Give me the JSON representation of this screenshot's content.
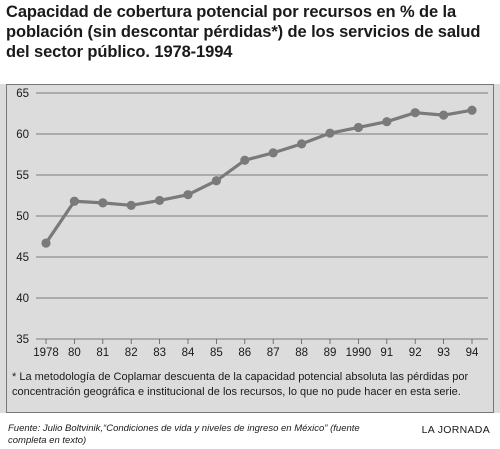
{
  "title": "Capacidad de cobertura potencial por recursos en % de la población (sin descontar pérdidas*) de los servicios de salud del sector público. 1978-1994",
  "note": "* La metodología de Coplamar descuenta de la capacidad potencial absoluta las pérdidas por concentración geográfica e institucional de los recursos, lo que no pude hacer en esta serie.",
  "source": "Fuente: Julio Boltvinik,“Condiciones de vida y niveles de ingreso en México” (fuente completa en texto)",
  "credit": "LA JORNADA",
  "colors": {
    "line": "#7a7a7a",
    "background": "#dcdcdc",
    "grid": "#5a5a5a"
  },
  "chart_data": {
    "type": "line",
    "title": "Capacidad de cobertura potencial por recursos en % de la población (sin descontar pérdidas*) de los servicios de salud del sector público. 1978-1994",
    "xlabel": "",
    "ylabel": "",
    "categories": [
      "1978",
      "80",
      "81",
      "82",
      "83",
      "84",
      "85",
      "86",
      "87",
      "88",
      "89",
      "1990",
      "91",
      "92",
      "93",
      "94"
    ],
    "values": [
      46.7,
      51.8,
      51.6,
      51.3,
      51.9,
      52.6,
      54.3,
      56.8,
      57.7,
      58.8,
      60.1,
      60.8,
      61.5,
      62.6,
      62.3,
      62.9
    ],
    "ylim": [
      35,
      65
    ],
    "yticks": [
      35,
      40,
      45,
      50,
      55,
      60,
      65
    ],
    "grid": true,
    "legend": "none"
  }
}
